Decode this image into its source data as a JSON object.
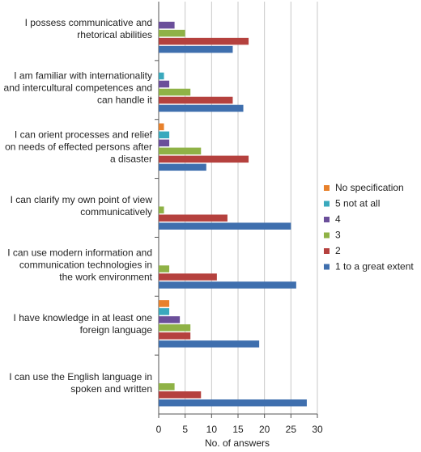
{
  "chart_data": {
    "type": "hbar",
    "x_label": "No. of answers",
    "categories": [
      "I possess communicative and rhetorical abilities",
      "I am familiar with internationality and intercultural competences and can handle it",
      "I can orient processes and relief on needs of effected persons after a disaster",
      "I can clarify my own point of view communicatively",
      "I can use modern information and communication technologies in the work environment",
      "I have knowledge in at least one foreign language",
      "I can use the English language in spoken and written"
    ],
    "series": [
      {
        "name": "No specification",
        "color": "#e8812b",
        "values": [
          0,
          0,
          1,
          0,
          0,
          2,
          0
        ]
      },
      {
        "name": "5 not at all",
        "color": "#3aa9bd",
        "values": [
          0,
          1,
          2,
          0,
          0,
          2,
          0
        ]
      },
      {
        "name": "4",
        "color": "#6b4f9a",
        "values": [
          3,
          2,
          2,
          0,
          0,
          4,
          0
        ]
      },
      {
        "name": "3",
        "color": "#8fb246",
        "values": [
          5,
          6,
          8,
          1,
          2,
          6,
          3
        ]
      },
      {
        "name": "2",
        "color": "#b5413e",
        "values": [
          17,
          14,
          17,
          13,
          11,
          6,
          8
        ]
      },
      {
        "name": "1 to a great extent",
        "color": "#3f6fae",
        "values": [
          14,
          16,
          9,
          25,
          26,
          19,
          28
        ]
      }
    ],
    "xlim": [
      0,
      30
    ],
    "xticks": [
      0,
      5,
      10,
      15,
      20,
      25,
      30
    ],
    "grid": true
  }
}
